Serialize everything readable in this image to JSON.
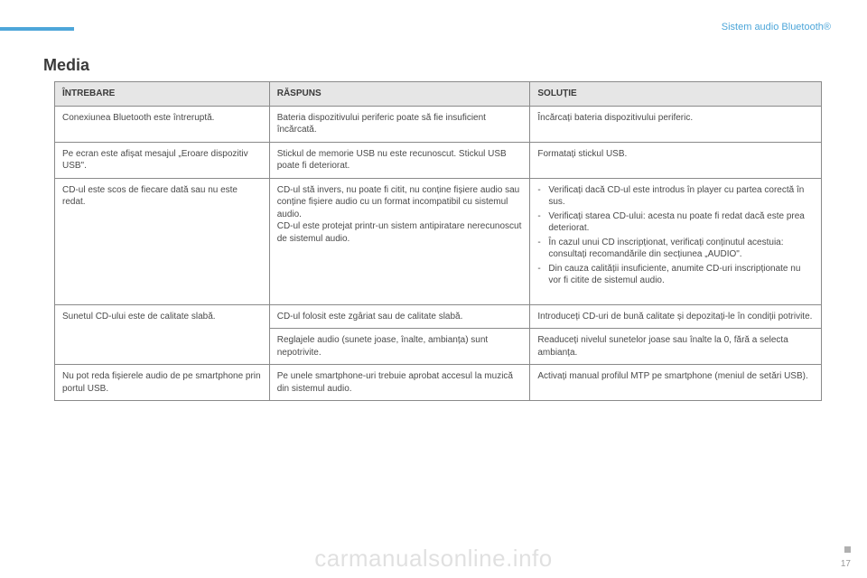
{
  "header": {
    "breadcrumb": "Sistem audio Bluetooth®",
    "title": "Media"
  },
  "table": {
    "columns": [
      "ÎNTREBARE",
      "RĂSPUNS",
      "SOLUȚIE"
    ],
    "rows": [
      {
        "q": "Conexiunea Bluetooth este întreruptă.",
        "a": "Bateria dispozitivului periferic poate să fie insuficient încărcată.",
        "s": "Încărcați bateria dispozitivului periferic."
      },
      {
        "q": "Pe ecran este afișat mesajul „Eroare dispozitiv USB\".",
        "a": "Stickul de memorie USB nu este recunoscut. Stickul USB poate fi deteriorat.",
        "s": "Formatați stickul USB."
      },
      {
        "q": "CD-ul este scos de fiecare dată sau nu este redat.",
        "a": "CD-ul stă invers, nu poate fi citit, nu conține fișiere audio sau conține fișiere audio cu un format incompatibil cu sistemul audio.\nCD-ul este protejat printr-un sistem antipiratare nerecunoscut de sistemul audio.",
        "s_list": [
          "Verificați dacă CD-ul este introdus în player cu partea corectă în sus.",
          "Verificați starea CD-ului: acesta nu poate fi redat dacă este prea deteriorat.",
          "În cazul unui CD inscripționat, verificați conținutul acestuia: consultați recomandările din secțiunea „AUDIO\".",
          "Din cauza calității insuficiente, anumite CD-uri inscripționate nu vor fi citite de sistemul audio."
        ]
      },
      {
        "q": "Sunetul CD-ului este de calitate slabă.",
        "qrows": 2,
        "a": "CD-ul folosit este zgâriat sau de calitate slabă.",
        "s": "Introduceți CD-uri de bună calitate și depozitați-le în condiții potrivite."
      },
      {
        "a": "Reglajele audio (sunete joase, înalte, ambianța) sunt nepotrivite.",
        "s": "Readuceți nivelul sunetelor joase sau înalte la 0, fără a selecta ambianța."
      },
      {
        "q": "Nu pot reda fișierele audio de pe smartphone prin portul USB.",
        "a": "Pe unele smartphone-uri trebuie aprobat accesul la muzică din sistemul audio.",
        "s": "Activați manual profilul MTP pe smartphone (meniul de setări USB)."
      }
    ]
  },
  "footer": {
    "watermark": "carmanualsonline.info",
    "page": "17"
  },
  "style": {
    "accent": "#4da6d9",
    "header_bg": "#e6e6e6",
    "border": "#8a8a8a",
    "text": "#4a4a4a"
  }
}
